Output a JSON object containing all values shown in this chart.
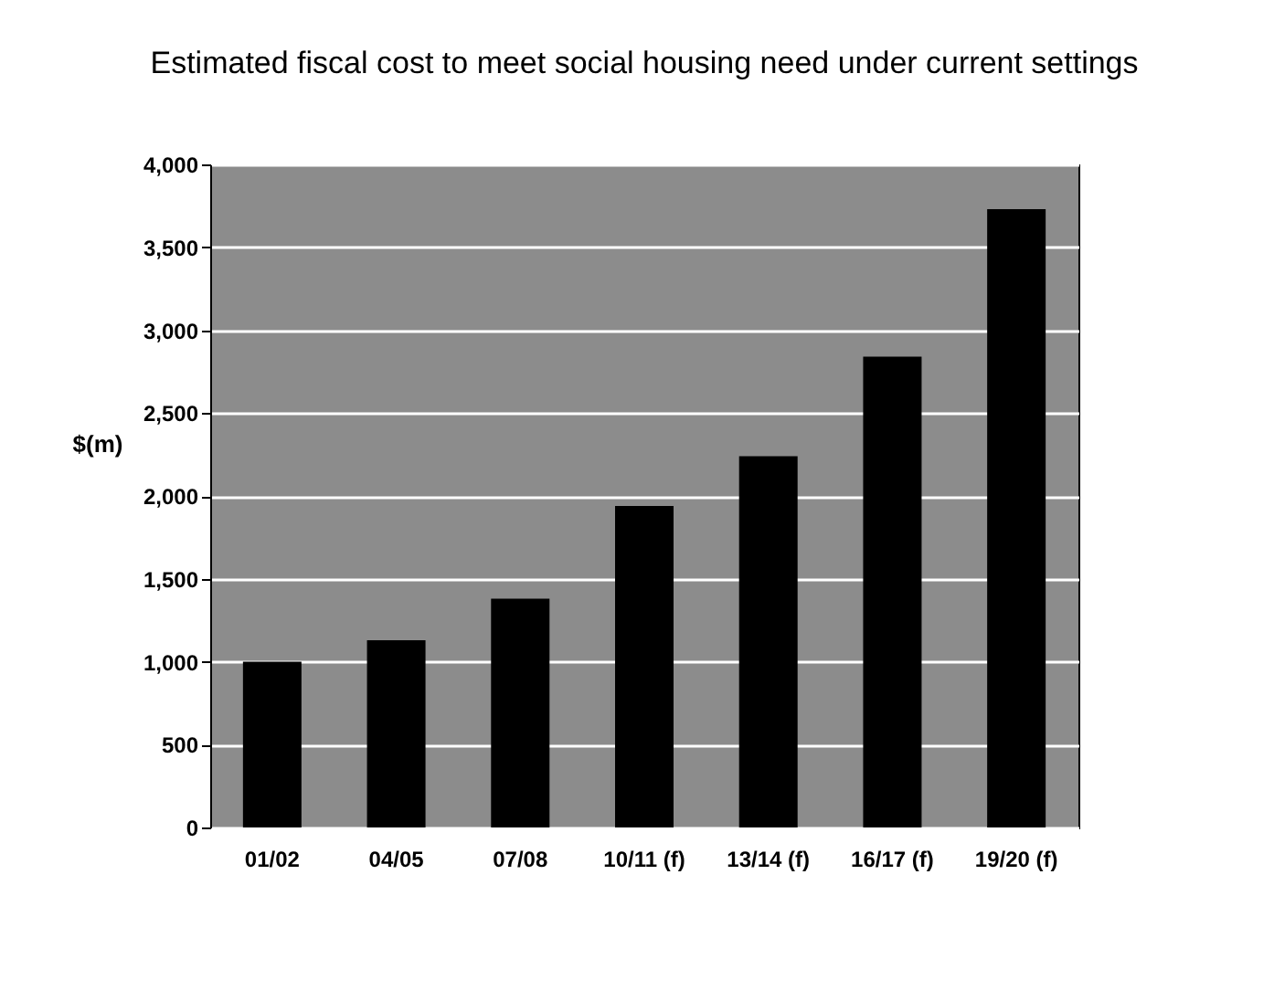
{
  "chart_data": {
    "type": "bar",
    "title": "Estimated fiscal cost to meet social housing need under current settings",
    "ylabel": "$(m)",
    "categories": [
      "01/02",
      "04/05",
      "07/08",
      "10/11 (f)",
      "13/14 (f)",
      "16/17 (f)",
      "19/20 (f)"
    ],
    "values": [
      1000,
      1130,
      1380,
      1940,
      2240,
      2840,
      3730
    ],
    "color": "#000000",
    "ylim": [
      0,
      4000
    ],
    "yticks": [
      0,
      500,
      {
        "value": 1000,
        "label": "1,000"
      },
      {
        "value": 1500,
        "label": "1,500"
      },
      {
        "value": 2000,
        "label": "2,000"
      },
      {
        "value": 2500,
        "label": "2,500"
      },
      {
        "value": 3000,
        "label": "3,000"
      },
      {
        "value": 3500,
        "label": "3,500"
      },
      {
        "value": 4000,
        "label": "4,000"
      }
    ],
    "grid": "y"
  }
}
